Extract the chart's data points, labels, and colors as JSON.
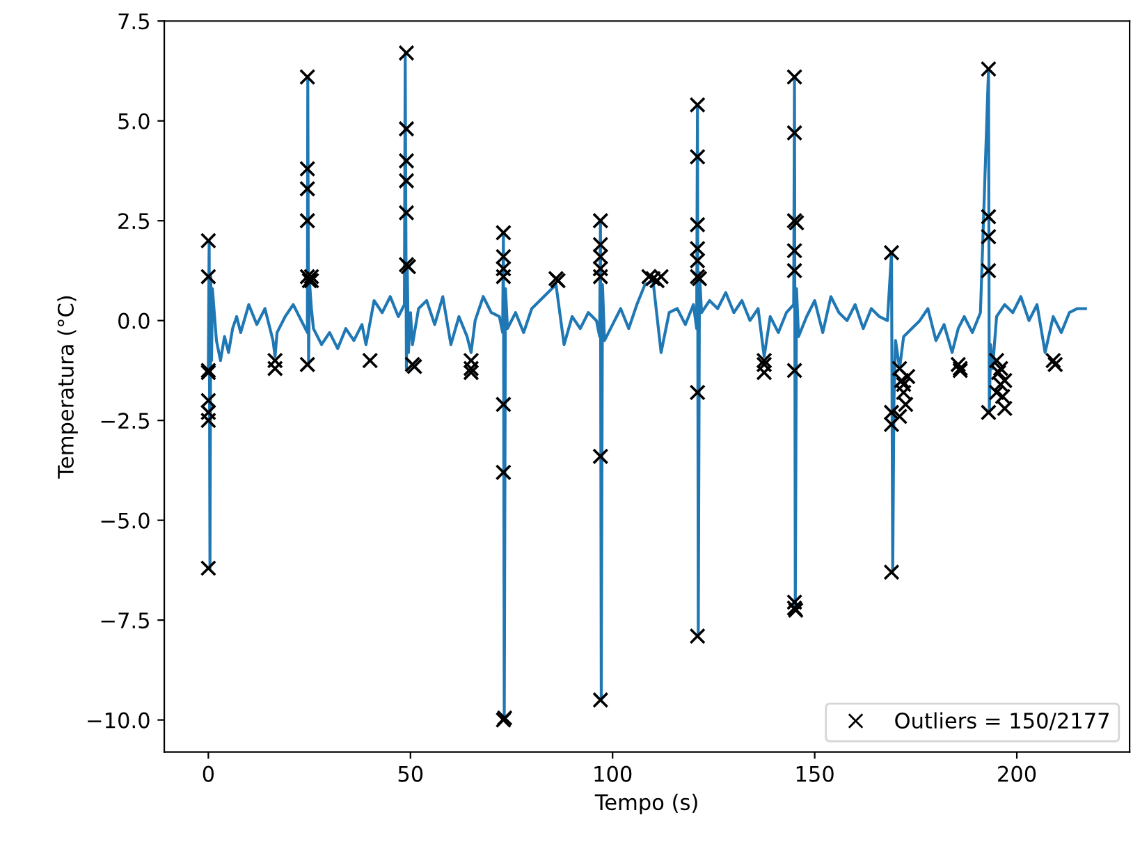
{
  "chart_data": {
    "type": "line",
    "xlabel": "Tempo (s)",
    "ylabel": "Temperatura (°C)",
    "xlim": [
      -10.9,
      227.9
    ],
    "ylim": [
      -10.8,
      7.5
    ],
    "xticks": [
      0,
      50,
      100,
      150,
      200
    ],
    "yticks": [
      {
        "value": -10,
        "label": "−10.0"
      },
      {
        "value": -7.5,
        "label": "−7.5"
      },
      {
        "value": -5,
        "label": "−5.0"
      },
      {
        "value": -2.5,
        "label": "−2.5"
      },
      {
        "value": 0,
        "label": "0.0"
      },
      2.5,
      {
        "value": 5,
        "label": "5.0"
      },
      7.5
    ],
    "grid": false,
    "legend": "bottom right",
    "series": [
      {
        "color": "#1f77b4",
        "marker": "none",
        "x": [
          0,
          0.2,
          0.4,
          0.6,
          0.8,
          1,
          2,
          3,
          4,
          5,
          6,
          7,
          8,
          10,
          12,
          14,
          16,
          16.5,
          17,
          19,
          21,
          23,
          24.5,
          24.6,
          24.8,
          25,
          25.5,
          26,
          28,
          30,
          32,
          34,
          36,
          38,
          39,
          41,
          43,
          45,
          47,
          48.5,
          48.7,
          49,
          49.2,
          49.5,
          50,
          50.5,
          52,
          54,
          56,
          58,
          60,
          62,
          64,
          65,
          66,
          68,
          70,
          72,
          72.8,
          73,
          73.2,
          73.5,
          74,
          76,
          78,
          80,
          82,
          84,
          86,
          88,
          90,
          92,
          94,
          96,
          96.8,
          97,
          97.2,
          97.5,
          98,
          100,
          102,
          104,
          106,
          108,
          110,
          112,
          114,
          116,
          118,
          120,
          120.8,
          121,
          121.2,
          121.5,
          122,
          124,
          126,
          128,
          130,
          132,
          134,
          136,
          137.5,
          139,
          141,
          143,
          144.8,
          145,
          145.2,
          145.5,
          146,
          148,
          150,
          152,
          154,
          156,
          158,
          160,
          162,
          164,
          166,
          168,
          169,
          169.3,
          169.6,
          170,
          171,
          172,
          174,
          176,
          178,
          180,
          182,
          184,
          185.5,
          187,
          189,
          191,
          193,
          193.2,
          193.5,
          194,
          195,
          197,
          199,
          201,
          203,
          205,
          207,
          209,
          211,
          213,
          215,
          217
        ],
        "values": [
          -1.2,
          2.0,
          -6.2,
          1.1,
          -1.0,
          0.8,
          -0.5,
          -1.0,
          -0.4,
          -0.8,
          -0.2,
          0.1,
          -0.3,
          0.4,
          -0.1,
          0.3,
          -0.5,
          -0.9,
          -0.3,
          0.1,
          0.4,
          0.0,
          -0.3,
          6.1,
          -1.1,
          1.0,
          0.3,
          -0.2,
          -0.6,
          -0.3,
          -0.7,
          -0.2,
          -0.5,
          -0.1,
          -0.6,
          0.5,
          0.2,
          0.6,
          0.1,
          0.4,
          6.7,
          -1.2,
          1.4,
          -0.8,
          0.2,
          -0.6,
          0.3,
          0.5,
          -0.1,
          0.6,
          -0.6,
          0.1,
          -0.4,
          -0.8,
          0.0,
          0.6,
          0.2,
          0.1,
          -0.3,
          2.2,
          -10.0,
          0.8,
          -0.2,
          0.2,
          -0.3,
          0.3,
          0.5,
          0.7,
          0.9,
          -0.6,
          0.1,
          -0.2,
          0.2,
          0.0,
          -0.4,
          2.5,
          -9.5,
          0.9,
          -0.5,
          -0.1,
          0.3,
          -0.2,
          0.4,
          0.9,
          1.0,
          -0.8,
          0.2,
          0.3,
          -0.1,
          0.4,
          -0.2,
          5.4,
          -7.9,
          1.2,
          0.2,
          0.5,
          0.3,
          0.7,
          0.2,
          0.5,
          0.0,
          0.3,
          -0.9,
          0.1,
          -0.3,
          0.2,
          0.4,
          6.1,
          -7.2,
          0.8,
          -0.4,
          0.1,
          0.5,
          -0.3,
          0.6,
          0.2,
          0.0,
          0.4,
          -0.2,
          0.3,
          0.1,
          0.0,
          1.7,
          -6.3,
          -2.0,
          -0.5,
          -1.2,
          -0.4,
          -0.2,
          0.0,
          0.3,
          -0.5,
          -0.1,
          -0.8,
          -0.2,
          0.1,
          -0.3,
          0.2,
          6.3,
          -2.3,
          -0.6,
          -1.2,
          0.1,
          0.4,
          0.2,
          0.6,
          0.0,
          0.4,
          -0.8,
          0.1,
          -0.3,
          0.2,
          0.3,
          0.3
        ]
      },
      {
        "type": "scatter",
        "name": "Outliers = 150/2177",
        "color": "#000000",
        "marker": "cross",
        "x": [
          0,
          0,
          0,
          0,
          0,
          0,
          0,
          0,
          16.5,
          16.5,
          24.5,
          24.5,
          24.5,
          24.5,
          24.5,
          25,
          24.5,
          25.5,
          25.5,
          40,
          49,
          49,
          49,
          49,
          49,
          49,
          49.5,
          50.5,
          51,
          65,
          65,
          65,
          73,
          73,
          73,
          73,
          73,
          73,
          73,
          73.3,
          86,
          86.5,
          97,
          97,
          97,
          97,
          97,
          97,
          97,
          109,
          110,
          111,
          112,
          121,
          121,
          121,
          121,
          121,
          121,
          121.5,
          121,
          121,
          137.5,
          137.5,
          137.5,
          145,
          145,
          145,
          145.5,
          145,
          145,
          145,
          145,
          145,
          145.3,
          169,
          169,
          169,
          169,
          171,
          171.5,
          172,
          172.5,
          173,
          171,
          172,
          185.5,
          186,
          186,
          193,
          193,
          193,
          193,
          193,
          195,
          195.5,
          196,
          196.5,
          197,
          195,
          196,
          197,
          209,
          209.5
        ],
        "values": [
          2.0,
          1.1,
          -1.3,
          -1.25,
          -2.0,
          -2.3,
          -2.5,
          -6.2,
          -1.0,
          -1.2,
          6.1,
          3.8,
          3.3,
          2.5,
          1.1,
          1.0,
          -1.1,
          1.1,
          1.0,
          -1.0,
          6.7,
          4.8,
          4.0,
          3.5,
          2.7,
          1.4,
          1.35,
          -1.1,
          -1.15,
          -1.0,
          -1.2,
          -1.3,
          2.2,
          1.6,
          1.3,
          1.1,
          -2.1,
          -3.8,
          -10.0,
          -9.95,
          1.05,
          1.0,
          2.5,
          1.9,
          1.6,
          1.3,
          1.1,
          -3.4,
          -9.5,
          1.1,
          1.05,
          1.0,
          1.1,
          5.4,
          4.1,
          2.4,
          1.8,
          1.5,
          1.1,
          1.05,
          -1.8,
          -7.9,
          -1.0,
          -1.1,
          -1.3,
          6.1,
          4.7,
          2.5,
          2.45,
          1.75,
          1.25,
          -1.25,
          -7.05,
          -7.2,
          -7.25,
          1.7,
          -2.3,
          -2.6,
          -6.3,
          -1.2,
          -1.5,
          -1.8,
          -2.1,
          -1.4,
          -2.4,
          -1.6,
          -1.1,
          -1.2,
          -1.25,
          6.3,
          2.6,
          2.1,
          1.25,
          -2.3,
          -1.0,
          -1.3,
          -1.6,
          -1.9,
          -2.2,
          -1.8,
          -1.2,
          -1.5,
          -1.0,
          -1.1
        ]
      }
    ]
  }
}
